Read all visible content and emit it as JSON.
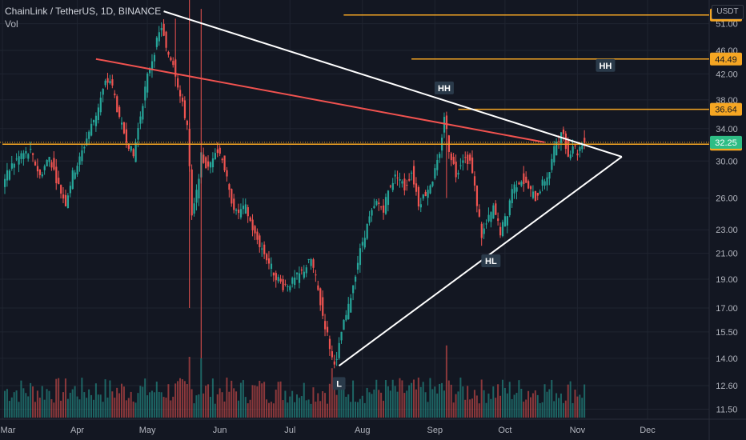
{
  "legend": {
    "symbol": "ChainLink / TetherUS, 1D, BINANCE",
    "volume_label": "Vol"
  },
  "price_unit": "USDT",
  "colors": {
    "background": "#131722",
    "grid": "#1f2430",
    "up": "#26a69a",
    "down": "#ef5350",
    "level": "#f5a623",
    "resistance": "#f0524f",
    "triangle": "#ffffff",
    "axis_text": "#b2b5be"
  },
  "chart_data": {
    "type": "candlestick",
    "title": "ChainLink / TetherUS, 1D, BINANCE",
    "y_scale": "log",
    "ylim": [
      11.0,
      56.0
    ],
    "y_ticks": [
      "11.50",
      "12.60",
      "14.00",
      "15.50",
      "17.00",
      "19.00",
      "21.00",
      "23.00",
      "26.00",
      "30.00",
      "34.00",
      "38.00",
      "42.00",
      "46.00",
      "51.00"
    ],
    "x_ticks": [
      {
        "label": "Mar",
        "day": -1
      },
      {
        "label": "Apr",
        "day": 31
      },
      {
        "label": "May",
        "day": 61
      },
      {
        "label": "Jun",
        "day": 92
      },
      {
        "label": "Jul",
        "day": 122
      },
      {
        "label": "Aug",
        "day": 153
      },
      {
        "label": "Sep",
        "day": 184
      },
      {
        "label": "Oct",
        "day": 214
      },
      {
        "label": "Nov",
        "day": 245
      },
      {
        "label": "Dec",
        "day": 275
      }
    ],
    "x_range": [
      -1,
      312
    ],
    "last_day": 248,
    "price_path": [
      [
        0,
        27.5
      ],
      [
        4,
        29.5
      ],
      [
        8,
        30.8
      ],
      [
        12,
        31.0
      ],
      [
        16,
        28.3
      ],
      [
        20,
        30.5
      ],
      [
        24,
        27.2
      ],
      [
        27,
        25.5
      ],
      [
        30,
        28.5
      ],
      [
        33,
        30.2
      ],
      [
        36,
        32.8
      ],
      [
        40,
        36.0
      ],
      [
        44,
        40.5
      ],
      [
        46,
        41.0
      ],
      [
        48,
        38.5
      ],
      [
        50,
        35.0
      ],
      [
        54,
        32.0
      ],
      [
        56,
        30.5
      ],
      [
        58,
        34.0
      ],
      [
        62,
        41.5
      ],
      [
        66,
        47.5
      ],
      [
        68,
        50.5
      ],
      [
        70,
        46.0
      ],
      [
        73,
        44.0
      ],
      [
        76,
        38.5
      ],
      [
        79,
        34.5
      ],
      [
        81,
        24.0
      ],
      [
        83,
        26.5
      ],
      [
        85,
        30.5
      ],
      [
        88,
        29.0
      ],
      [
        91,
        31.5
      ],
      [
        94,
        30.5
      ],
      [
        97,
        26.5
      ],
      [
        100,
        24.5
      ],
      [
        104,
        25.0
      ],
      [
        108,
        22.5
      ],
      [
        112,
        21.0
      ],
      [
        116,
        19.5
      ],
      [
        120,
        18.5
      ],
      [
        124,
        18.8
      ],
      [
        128,
        19.5
      ],
      [
        132,
        20.5
      ],
      [
        134,
        19.0
      ],
      [
        137,
        16.5
      ],
      [
        139,
        15.3
      ],
      [
        141,
        14.0
      ],
      [
        143,
        13.8
      ],
      [
        145,
        15.5
      ],
      [
        148,
        17.0
      ],
      [
        151,
        19.5
      ],
      [
        154,
        22.0
      ],
      [
        157,
        24.0
      ],
      [
        160,
        25.5
      ],
      [
        163,
        25.0
      ],
      [
        166,
        27.5
      ],
      [
        169,
        28.5
      ],
      [
        172,
        27.0
      ],
      [
        175,
        28.8
      ],
      [
        178,
        25.5
      ],
      [
        181,
        26.5
      ],
      [
        184,
        28.0
      ],
      [
        187,
        30.5
      ],
      [
        189,
        35.8
      ],
      [
        191,
        31.5
      ],
      [
        194,
        28.5
      ],
      [
        197,
        30.5
      ],
      [
        200,
        30.0
      ],
      [
        202,
        27.0
      ],
      [
        205,
        22.5
      ],
      [
        208,
        24.0
      ],
      [
        210,
        25.0
      ],
      [
        213,
        22.8
      ],
      [
        216,
        24.5
      ],
      [
        218,
        27.0
      ],
      [
        222,
        28.0
      ],
      [
        225,
        27.0
      ],
      [
        228,
        26.0
      ],
      [
        231,
        27.5
      ],
      [
        234,
        28.8
      ],
      [
        237,
        32.5
      ],
      [
        240,
        33.5
      ],
      [
        242,
        30.5
      ],
      [
        244,
        32.0
      ],
      [
        246,
        31.0
      ],
      [
        248,
        32.3
      ]
    ],
    "volume_max": 1.0,
    "volume_spikes": [
      [
        79,
        0.8
      ],
      [
        84,
        0.78
      ],
      [
        140,
        0.65
      ],
      [
        189,
        0.95
      ],
      [
        110,
        0.45
      ],
      [
        204,
        0.5
      ]
    ],
    "levels": [
      {
        "price": 52.74,
        "label": "52.74",
        "from_day": 145
      },
      {
        "price": 44.49,
        "label": "44.49",
        "from_day": 174
      },
      {
        "price": 36.64,
        "label": "36.64",
        "from_day": 194
      },
      {
        "price": 32.02,
        "label": "32.02",
        "from_day": -1
      }
    ],
    "last_price": {
      "price": 32.25,
      "label": "32.25"
    },
    "trendlines": [
      {
        "name": "red-resistance",
        "points": [
          [
            39,
            44.5
          ],
          [
            231,
            32.25
          ]
        ]
      },
      {
        "name": "triangle-upper",
        "points": [
          [
            68,
            53.5
          ],
          [
            264,
            30.5
          ]
        ]
      },
      {
        "name": "triangle-lower",
        "points": [
          [
            143,
            13.6
          ],
          [
            264,
            30.5
          ]
        ]
      }
    ],
    "annotations": [
      {
        "text": "HH",
        "day": 188,
        "price": 39.8
      },
      {
        "text": "HH",
        "day": 257,
        "price": 43.4
      },
      {
        "text": "HL",
        "day": 208,
        "price": 20.4
      },
      {
        "text": "L",
        "day": 143,
        "price": 12.7
      }
    ]
  }
}
